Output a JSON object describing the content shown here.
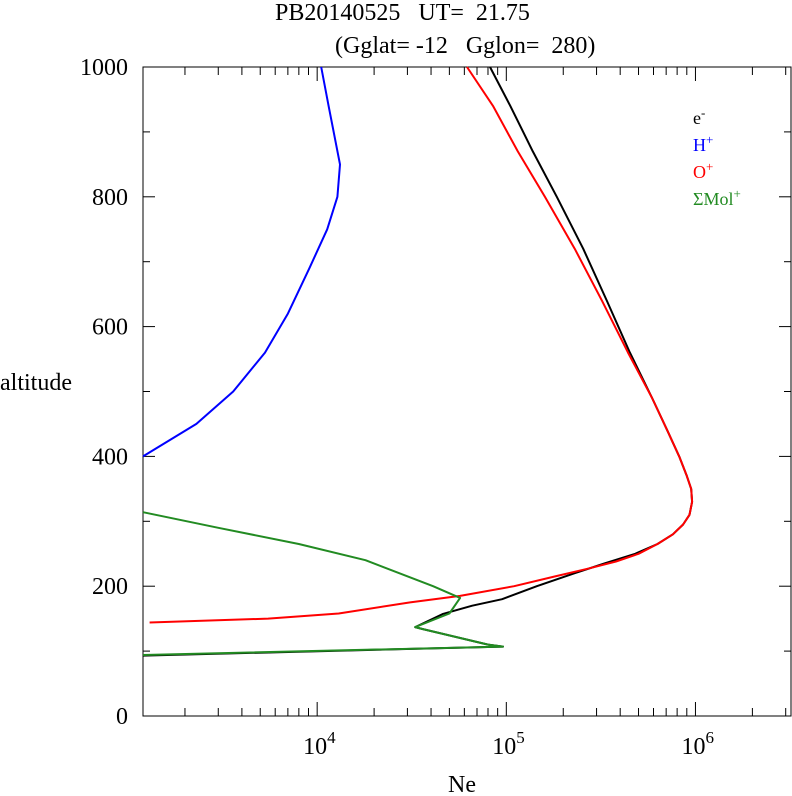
{
  "chart_data": {
    "type": "line",
    "title": {
      "line1": "PB20140525   UT=  21.75",
      "line2": "(Gglat= -12   Gglon=  280)"
    },
    "xlabel": "Ne",
    "ylabel": "altitude",
    "xscale": "log",
    "xlim": [
      1200,
      3200000
    ],
    "ylim": [
      0,
      1000
    ],
    "x_ticks": [
      {
        "value": 10000,
        "base": "10",
        "exp": "4"
      },
      {
        "value": 100000,
        "base": "10",
        "exp": "5"
      },
      {
        "value": 1000000,
        "base": "10",
        "exp": "6"
      }
    ],
    "y_ticks": [
      {
        "value": 0,
        "label": "0"
      },
      {
        "value": 200,
        "label": "200"
      },
      {
        "value": 400,
        "label": "400"
      },
      {
        "value": 600,
        "label": "600"
      },
      {
        "value": 800,
        "label": "800"
      },
      {
        "value": 1000,
        "label": "1000"
      }
    ],
    "grid": false,
    "legend_position": "top-right",
    "series": [
      {
        "name": "e",
        "name_sup": "-",
        "color": "#000000",
        "points": [
          [
            1200,
            93
          ],
          [
            96000,
            107
          ],
          [
            80000,
            110
          ],
          [
            36000,
            134
          ],
          [
            33000,
            137
          ],
          [
            46000,
            157
          ],
          [
            66000,
            170
          ],
          [
            95000,
            180
          ],
          [
            145000,
            200
          ],
          [
            230000,
            220
          ],
          [
            330000,
            235
          ],
          [
            480000,
            250
          ],
          [
            630000,
            265
          ],
          [
            760000,
            280
          ],
          [
            860000,
            295
          ],
          [
            930000,
            310
          ],
          [
            960000,
            330
          ],
          [
            950000,
            350
          ],
          [
            900000,
            370
          ],
          [
            820000,
            400
          ],
          [
            710000,
            440
          ],
          [
            590000,
            490
          ],
          [
            450000,
            560
          ],
          [
            340000,
            640
          ],
          [
            255000,
            720
          ],
          [
            185000,
            800
          ],
          [
            138000,
            870
          ],
          [
            105000,
            940
          ],
          [
            82000,
            1000
          ]
        ]
      },
      {
        "name": "H",
        "name_sup": "+",
        "color": "#0000ff",
        "points": [
          [
            1200,
            400
          ],
          [
            2300,
            450
          ],
          [
            3600,
            500
          ],
          [
            5300,
            560
          ],
          [
            7000,
            620
          ],
          [
            9100,
            690
          ],
          [
            11300,
            750
          ],
          [
            12800,
            800
          ],
          [
            13200,
            850
          ],
          [
            12600,
            880
          ],
          [
            11500,
            940
          ],
          [
            10500,
            1000
          ]
        ]
      },
      {
        "name": "O",
        "name_sup": "+",
        "color": "#ff0000",
        "points": [
          [
            1300,
            144
          ],
          [
            5500,
            150
          ],
          [
            13000,
            158
          ],
          [
            31000,
            175
          ],
          [
            57000,
            185
          ],
          [
            110000,
            200
          ],
          [
            180000,
            215
          ],
          [
            270000,
            227
          ],
          [
            380000,
            238
          ],
          [
            500000,
            250
          ],
          [
            630000,
            265
          ],
          [
            760000,
            280
          ],
          [
            860000,
            295
          ],
          [
            930000,
            310
          ],
          [
            960000,
            330
          ],
          [
            950000,
            350
          ],
          [
            900000,
            370
          ],
          [
            820000,
            400
          ],
          [
            710000,
            440
          ],
          [
            590000,
            490
          ],
          [
            440000,
            560
          ],
          [
            320000,
            640
          ],
          [
            230000,
            720
          ],
          [
            160000,
            800
          ],
          [
            115000,
            870
          ],
          [
            85000,
            940
          ],
          [
            62000,
            1000
          ]
        ]
      },
      {
        "name": "ΣMol",
        "name_sup": "+",
        "color": "#228b22",
        "points": [
          [
            1200,
            314
          ],
          [
            3000,
            290
          ],
          [
            8000,
            265
          ],
          [
            18000,
            240
          ],
          [
            41000,
            200
          ],
          [
            57000,
            182
          ],
          [
            50000,
            158
          ],
          [
            33000,
            137
          ],
          [
            36000,
            134
          ],
          [
            80000,
            110
          ],
          [
            96000,
            107
          ],
          [
            1200,
            94
          ]
        ]
      }
    ]
  }
}
